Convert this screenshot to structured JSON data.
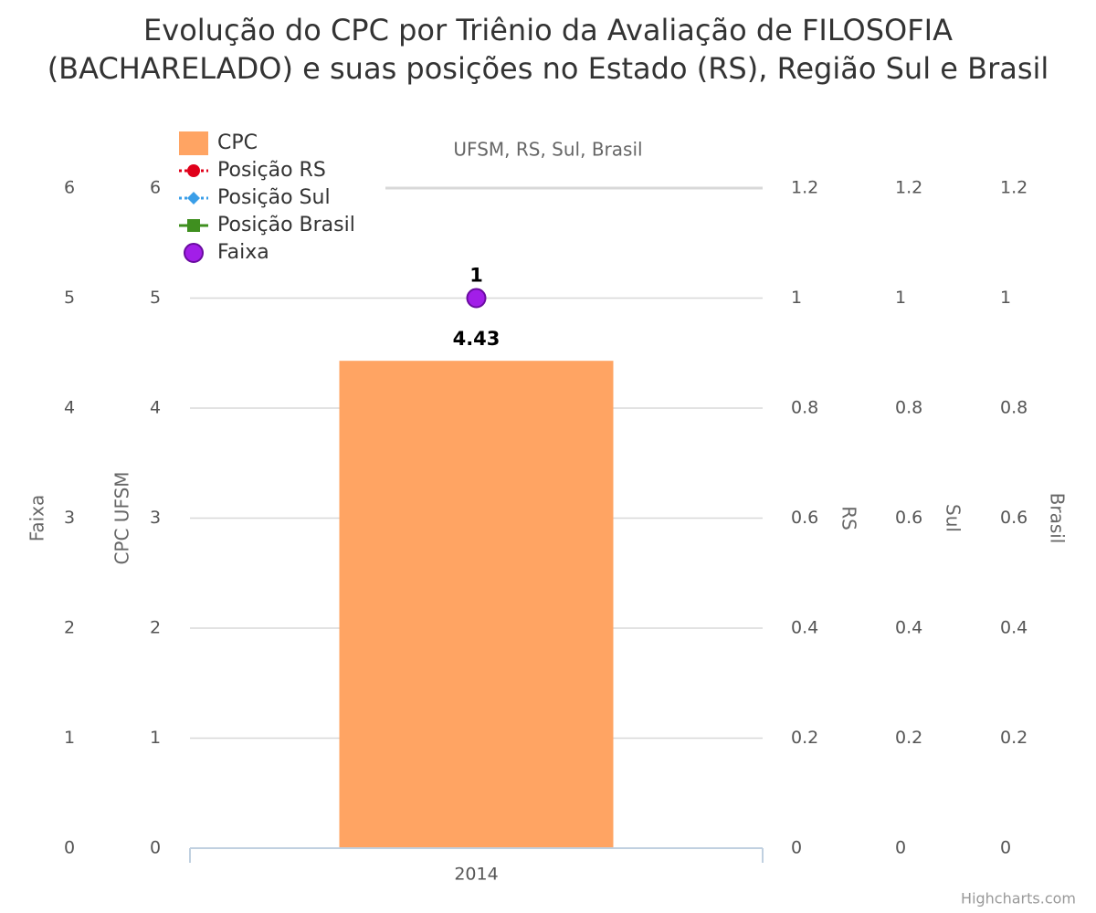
{
  "chart_data": {
    "type": "bar",
    "title": "Evolução do CPC por Triênio da Avaliação de FILOSOFIA (BACHARELADO) e suas posições no Estado (RS), Região Sul e Brasil",
    "subtitle": "UFSM, RS, Sul, Brasil",
    "credits": "Highcharts.com",
    "categories": [
      "2014"
    ],
    "grid": true,
    "legend": "top-left",
    "y_axes": [
      {
        "title": "Faixa",
        "opposite": false,
        "ylim": [
          0,
          6
        ],
        "yticks": [
          0,
          1,
          2,
          3,
          4,
          5,
          6
        ]
      },
      {
        "title": "CPC UFSM",
        "opposite": false,
        "ylim": [
          0,
          6
        ],
        "yticks": [
          0,
          1,
          2,
          3,
          4,
          5,
          6
        ]
      },
      {
        "title": "RS",
        "opposite": true,
        "ylim": [
          0,
          1.2
        ],
        "yticks": [
          0,
          0.2,
          0.4,
          0.6,
          0.8,
          1,
          1.2
        ]
      },
      {
        "title": "Sul",
        "opposite": true,
        "ylim": [
          0,
          1.2
        ],
        "yticks": [
          0,
          0.2,
          0.4,
          0.6,
          0.8,
          1,
          1.2
        ]
      },
      {
        "title": "Brasil",
        "opposite": true,
        "ylim": [
          0,
          1.2
        ],
        "yticks": [
          0,
          0.2,
          0.4,
          0.6,
          0.8,
          1,
          1.2
        ]
      }
    ],
    "series": [
      {
        "name": "CPC",
        "type": "bar",
        "marker": "rect",
        "color": "#ffa463",
        "axis": 1,
        "values": [
          4.43
        ]
      },
      {
        "name": "Posição RS",
        "type": "line",
        "marker": "circle",
        "color": "#e0001a",
        "axis": 2,
        "values": [
          null
        ]
      },
      {
        "name": "Posição Sul",
        "type": "line",
        "marker": "diamond",
        "color": "#3a9ee8",
        "axis": 3,
        "values": [
          null
        ]
      },
      {
        "name": "Posição Brasil",
        "type": "line",
        "marker": "square",
        "color": "#3f8f1f",
        "axis": 4,
        "values": [
          null
        ]
      },
      {
        "name": "Faixa",
        "type": "scatter",
        "marker": "circle",
        "color": "#a21ee8",
        "axis": 2,
        "values": [
          1
        ]
      }
    ]
  }
}
